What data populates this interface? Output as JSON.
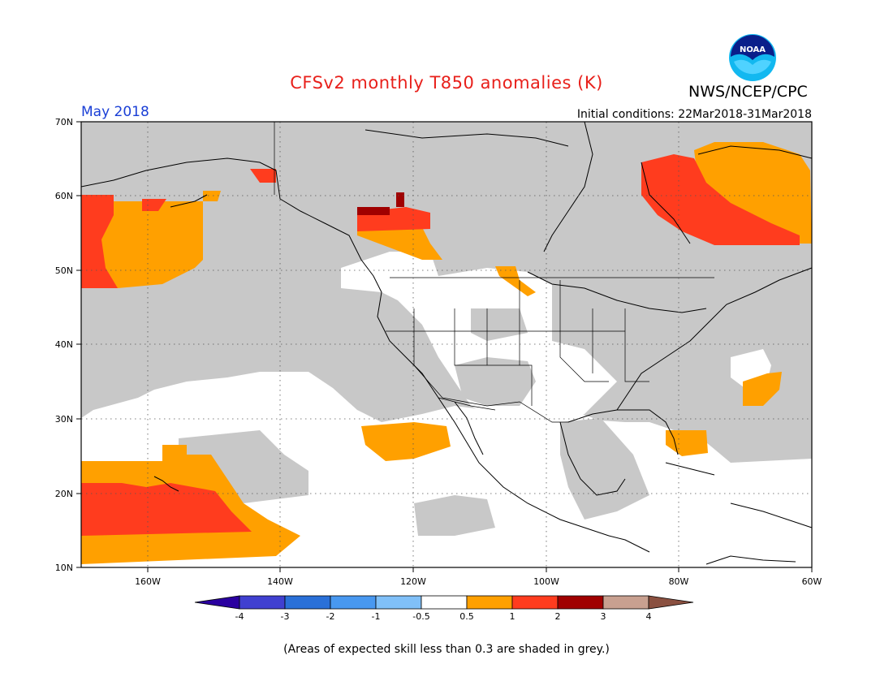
{
  "header": {
    "title": "CFSv2 monthly T850 anomalies (K)",
    "agency": "NWS/NCEP/CPC",
    "month": "May 2018",
    "initial_conditions": "Initial conditions: 22Mar2018-31Mar2018"
  },
  "logo": {
    "icon": "noaa-logo-icon",
    "text": "NOAA"
  },
  "axes": {
    "lat_labels": [
      "70N",
      "60N",
      "50N",
      "40N",
      "30N",
      "20N",
      "10N"
    ],
    "lon_labels": [
      "160W",
      "140W",
      "120W",
      "100W",
      "80W",
      "60W"
    ],
    "lat_range": [
      10,
      70
    ],
    "lon_range": [
      -170,
      -60
    ],
    "grid": "dotted"
  },
  "colors": {
    "skill_grey": "#c8c8c8",
    "ocean_land_bg": "#ffffff",
    "orange": "#ffa000",
    "red_orange": "#ff3c1e",
    "dark_red": "#a00000",
    "coast": "#000000"
  },
  "legend": {
    "labels": [
      "-4",
      "-3",
      "-2",
      "-1",
      "-0.5",
      "0.5",
      "1",
      "2",
      "3",
      "4"
    ],
    "colors": [
      "#2a00a0",
      "#4040d0",
      "#2a70d8",
      "#4898f0",
      "#80c0f8",
      "#ffffff",
      "#ffa000",
      "#ff3c1e",
      "#a00000",
      "#c8a090",
      "#8a5040"
    ]
  },
  "footnote": "(Areas of expected skill less than 0.3 are shaded in grey.)"
}
